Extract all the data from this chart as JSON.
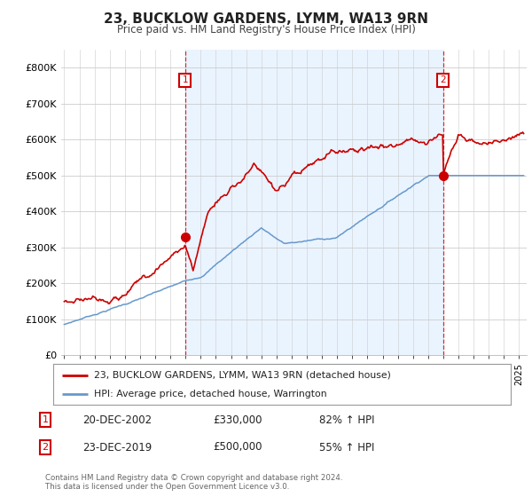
{
  "title": "23, BUCKLOW GARDENS, LYMM, WA13 9RN",
  "subtitle": "Price paid vs. HM Land Registry's House Price Index (HPI)",
  "background_color": "#ffffff",
  "plot_bg_color": "#ffffff",
  "shade_color": "#ddeeff",
  "ylim": [
    0,
    850000
  ],
  "yticks": [
    0,
    100000,
    200000,
    300000,
    400000,
    500000,
    600000,
    700000,
    800000
  ],
  "ytick_labels": [
    "£0",
    "£100K",
    "£200K",
    "£300K",
    "£400K",
    "£500K",
    "£600K",
    "£700K",
    "£800K"
  ],
  "purchase1_x": 2002.97,
  "purchase1_y": 330000,
  "purchase2_x": 2019.98,
  "purchase2_y": 500000,
  "legend1_text": "23, BUCKLOW GARDENS, LYMM, WA13 9RN (detached house)",
  "legend2_text": "HPI: Average price, detached house, Warrington",
  "footer": "Contains HM Land Registry data © Crown copyright and database right 2024.\nThis data is licensed under the Open Government Licence v3.0.",
  "table_rows": [
    [
      "1",
      "20-DEC-2002",
      "£330,000",
      "82% ↑ HPI"
    ],
    [
      "2",
      "23-DEC-2019",
      "£500,000",
      "55% ↑ HPI"
    ]
  ],
  "red_color": "#cc0000",
  "blue_color": "#6699cc",
  "xmin": 1994.8,
  "xmax": 2025.5
}
